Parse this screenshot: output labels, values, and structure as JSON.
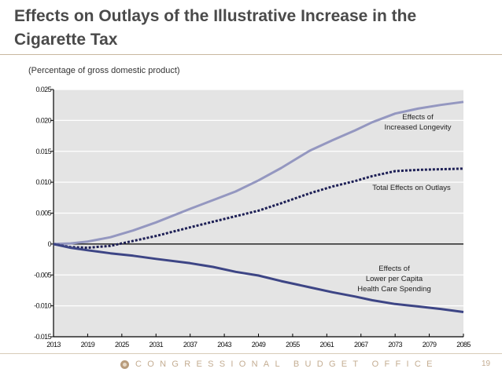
{
  "slide": {
    "title": "Effects on Outlays of the Illustrative Increase in the Cigarette Tax",
    "subtitle": "(Percentage of gross domestic product)",
    "footer": "CONGRESSIONAL BUDGET OFFICE",
    "page_number": "19",
    "footer_icon": "cbo-seal-icon"
  },
  "chart_data": {
    "type": "line",
    "title": "Effects on Outlays of the Illustrative Increase in the Cigarette Tax",
    "ylabel": "Percentage of gross domestic product",
    "xlabel": "",
    "xlim": [
      2013,
      2085
    ],
    "ylim": [
      -0.015,
      0.025
    ],
    "xticks": [
      2013,
      2019,
      2025,
      2031,
      2037,
      2043,
      2049,
      2055,
      2061,
      2067,
      2073,
      2079,
      2085
    ],
    "yticks": [
      0.025,
      0.02,
      0.015,
      0.01,
      0.005,
      0,
      -0.005,
      -0.01,
      -0.015
    ],
    "ytick_labels": [
      "0.025",
      "0.020",
      "0.015",
      "0.010",
      "0.005",
      "0",
      "-0.005",
      "-0.010",
      "-0.015"
    ],
    "grid": true,
    "colors": {
      "plot_background": "#e4e4e4",
      "longevity": "#9497c0",
      "total": "#1d1f55",
      "lower_spending": "#3d4585"
    },
    "series": [
      {
        "name": "Effects of Increased Longevity",
        "label_lines": [
          "Effects of",
          "Increased Longevity"
        ],
        "style": "solid",
        "x": [
          2013,
          2016,
          2019,
          2023,
          2027,
          2031,
          2037,
          2041,
          2045,
          2049,
          2053,
          2058,
          2062,
          2066,
          2069,
          2073,
          2077,
          2081,
          2085
        ],
        "values": [
          0.0,
          0.0001,
          0.0004,
          0.0011,
          0.0022,
          0.0035,
          0.0057,
          0.0071,
          0.0085,
          0.0103,
          0.0123,
          0.0151,
          0.0168,
          0.0184,
          0.0197,
          0.0211,
          0.0219,
          0.0225,
          0.023
        ]
      },
      {
        "name": "Total Effects on Outlays",
        "label_lines": [
          "Total Effects on Outlays"
        ],
        "style": "dotted",
        "x": [
          2013,
          2016,
          2019,
          2023,
          2027,
          2031,
          2037,
          2041,
          2045,
          2049,
          2053,
          2058,
          2062,
          2066,
          2069,
          2073,
          2077,
          2081,
          2085
        ],
        "values": [
          0.0,
          -0.0005,
          -0.0006,
          -0.0003,
          0.0005,
          0.0013,
          0.0027,
          0.0036,
          0.0045,
          0.0054,
          0.0066,
          0.0082,
          0.0093,
          0.0102,
          0.011,
          0.0118,
          0.012,
          0.0121,
          0.0122
        ]
      },
      {
        "name": "Effects of Lower per Capita Health Care Spending",
        "label_lines": [
          "Effects of",
          "Lower per Capita",
          "Health Care Spending"
        ],
        "style": "solid",
        "x": [
          2013,
          2016,
          2019,
          2023,
          2027,
          2031,
          2037,
          2041,
          2045,
          2049,
          2053,
          2058,
          2062,
          2066,
          2069,
          2073,
          2077,
          2081,
          2085
        ],
        "values": [
          0.0,
          -0.0006,
          -0.001,
          -0.0015,
          -0.0019,
          -0.0024,
          -0.0031,
          -0.0037,
          -0.0045,
          -0.0051,
          -0.006,
          -0.007,
          -0.0078,
          -0.0085,
          -0.0091,
          -0.0097,
          -0.0101,
          -0.0105,
          -0.011
        ]
      }
    ]
  }
}
